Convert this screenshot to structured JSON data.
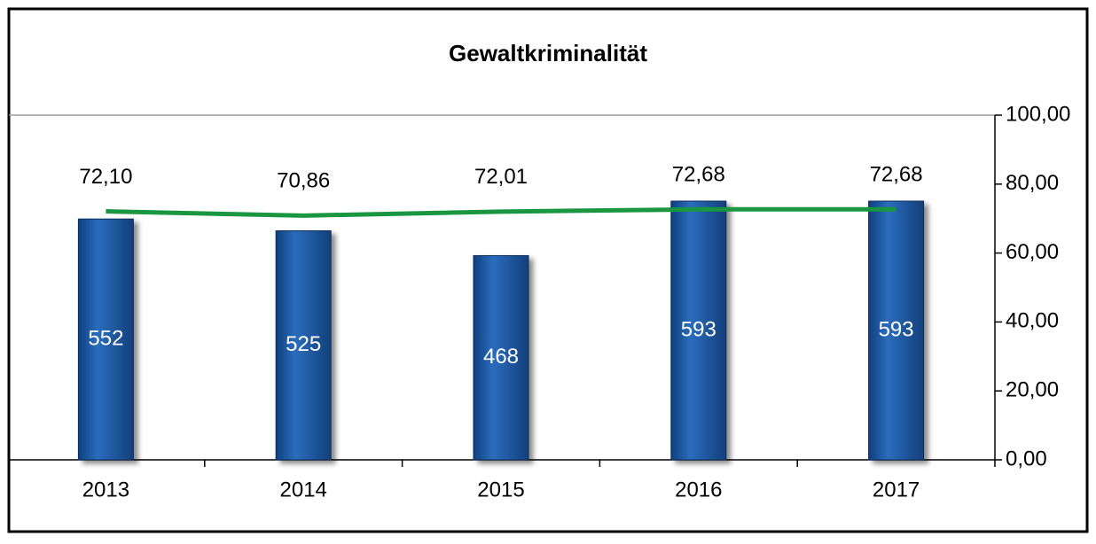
{
  "chart_data": {
    "type": "bar",
    "title": "Gewaltkriminalität",
    "categories": [
      "2013",
      "2014",
      "2015",
      "2016",
      "2017"
    ],
    "ylim": [
      0,
      790
    ],
    "y2lim": [
      0,
      100
    ],
    "y2ticks": [
      {
        "value": 0,
        "label": "0,00"
      },
      {
        "value": 20,
        "label": "20,00"
      },
      {
        "value": 40,
        "label": "40,00"
      },
      {
        "value": 60,
        "label": "60,00"
      },
      {
        "value": 80,
        "label": "80,00"
      },
      {
        "value": 100,
        "label": "100,00"
      }
    ],
    "series": [
      {
        "type": "bar",
        "color": "#1f5aa6",
        "values": [
          552,
          525,
          468,
          593,
          593
        ]
      },
      {
        "type": "line",
        "axis": "y2",
        "color": "#1a9641",
        "values": [
          72.1,
          70.86,
          72.01,
          72.68,
          72.68
        ],
        "value_labels": [
          "72,10",
          "70,86",
          "72,01",
          "72,68",
          "72,68"
        ]
      }
    ]
  }
}
